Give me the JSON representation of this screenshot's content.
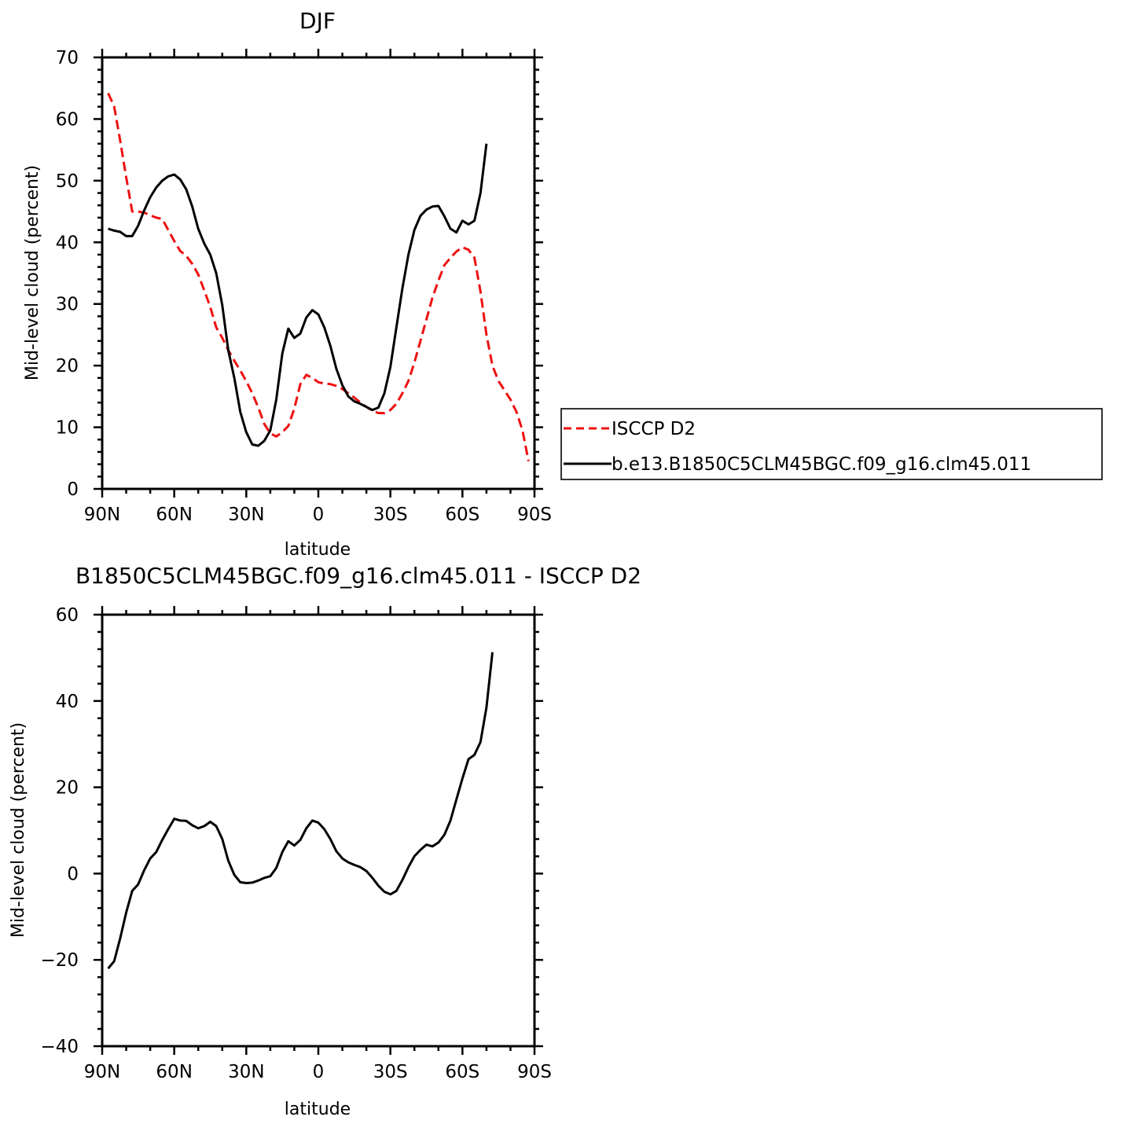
{
  "chart_data": [
    {
      "type": "line",
      "title": "DJF",
      "xlabel": "latitude",
      "ylabel": "Mid-level cloud (percent)",
      "xlim": [
        -90,
        90
      ],
      "ylim": [
        0,
        70
      ],
      "x_direction": "north-to-south",
      "xticks": [
        -90,
        -60,
        -30,
        0,
        30,
        60,
        90
      ],
      "xtick_labels": [
        "90N",
        "60N",
        "30N",
        "0",
        "30S",
        "60S",
        "90S"
      ],
      "yticks": [
        0,
        10,
        20,
        30,
        40,
        50,
        60,
        70
      ],
      "ytick_labels": [
        "0",
        "10",
        "20",
        "30",
        "40",
        "50",
        "60",
        "70"
      ],
      "legend_position": "right",
      "series": [
        {
          "name": "ISCCP D2",
          "color": "#ee1111",
          "dash": "dashed",
          "points": [
            [
              -87.5,
              64.2
            ],
            [
              -85,
              62
            ],
            [
              -82.5,
              56.5
            ],
            [
              -80,
              50.5
            ],
            [
              -77.5,
              45
            ],
            [
              -75,
              45
            ],
            [
              -72.5,
              44.8
            ],
            [
              -70,
              44.4
            ],
            [
              -67.5,
              44
            ],
            [
              -65,
              43.8
            ],
            [
              -62.5,
              42
            ],
            [
              -60,
              40.2
            ],
            [
              -57.5,
              38.6
            ],
            [
              -55,
              37.8
            ],
            [
              -52.5,
              36.5
            ],
            [
              -50,
              34.8
            ],
            [
              -47.5,
              32.2
            ],
            [
              -45,
              29.5
            ],
            [
              -42.5,
              26.2
            ],
            [
              -40,
              24.5
            ],
            [
              -37.5,
              22.5
            ],
            [
              -35,
              20.8
            ],
            [
              -32.5,
              19.2
            ],
            [
              -30,
              17.5
            ],
            [
              -27.5,
              15.5
            ],
            [
              -25,
              13.2
            ],
            [
              -22.5,
              10.5
            ],
            [
              -20,
              9
            ],
            [
              -17.5,
              8.5
            ],
            [
              -15,
              9.2
            ],
            [
              -12.5,
              10.2
            ],
            [
              -10,
              13
            ],
            [
              -7.5,
              17
            ],
            [
              -5,
              18.5
            ],
            [
              -2.5,
              18
            ],
            [
              0,
              17.3
            ],
            [
              2.5,
              17.1
            ],
            [
              5,
              17
            ],
            [
              7.5,
              16.7
            ],
            [
              10,
              16.2
            ],
            [
              12.5,
              15.5
            ],
            [
              15,
              14.8
            ],
            [
              17.5,
              14
            ],
            [
              20,
              13.3
            ],
            [
              22.5,
              12.7
            ],
            [
              25,
              12.3
            ],
            [
              27.5,
              12.3
            ],
            [
              30,
              12.8
            ],
            [
              32.5,
              13.8
            ],
            [
              35,
              15.5
            ],
            [
              37.5,
              17.5
            ],
            [
              40,
              20.5
            ],
            [
              42.5,
              24
            ],
            [
              45,
              27.5
            ],
            [
              47.5,
              31
            ],
            [
              50,
              33.8
            ],
            [
              52.5,
              36.3
            ],
            [
              55,
              37.5
            ],
            [
              57.5,
              38.5
            ],
            [
              60,
              39.2
            ],
            [
              62.5,
              38.8
            ],
            [
              65,
              37.5
            ],
            [
              67.5,
              32
            ],
            [
              70,
              25
            ],
            [
              72.5,
              20
            ],
            [
              75,
              17.5
            ],
            [
              77.5,
              16
            ],
            [
              80,
              14.5
            ],
            [
              82.5,
              12.5
            ],
            [
              85,
              9.5
            ],
            [
              87.5,
              4.5
            ]
          ]
        },
        {
          "name": "b.e13.B1850C5CLM45BGC.f09_g16.clm45.011",
          "color": "#000000",
          "dash": "solid",
          "points": [
            [
              -87.5,
              42.2
            ],
            [
              -85,
              41.9
            ],
            [
              -82.5,
              41.7
            ],
            [
              -80,
              41
            ],
            [
              -77.5,
              41
            ],
            [
              -75,
              42.7
            ],
            [
              -72.5,
              45.2
            ],
            [
              -70,
              47.3
            ],
            [
              -67.5,
              48.9
            ],
            [
              -65,
              50
            ],
            [
              -62.5,
              50.7
            ],
            [
              -60,
              51
            ],
            [
              -57.5,
              50.2
            ],
            [
              -55,
              48.6
            ],
            [
              -52.5,
              45.8
            ],
            [
              -50,
              42.2
            ],
            [
              -47.5,
              39.8
            ],
            [
              -45,
              38
            ],
            [
              -42.5,
              35
            ],
            [
              -40,
              29.8
            ],
            [
              -37.5,
              22.5
            ],
            [
              -35,
              18
            ],
            [
              -32.5,
              12.5
            ],
            [
              -30,
              9.2
            ],
            [
              -27.5,
              7.2
            ],
            [
              -25,
              7
            ],
            [
              -22.5,
              7.8
            ],
            [
              -20,
              9.5
            ],
            [
              -17.5,
              14.5
            ],
            [
              -15,
              22
            ],
            [
              -12.5,
              26
            ],
            [
              -10,
              24.5
            ],
            [
              -7.5,
              25.2
            ],
            [
              -5,
              27.8
            ],
            [
              -2.5,
              29
            ],
            [
              0,
              28.3
            ],
            [
              2.5,
              26.2
            ],
            [
              5,
              23.2
            ],
            [
              7.5,
              19.5
            ],
            [
              10,
              16.8
            ],
            [
              12.5,
              15
            ],
            [
              15,
              14.2
            ],
            [
              17.5,
              13.8
            ],
            [
              20,
              13.3
            ],
            [
              22.5,
              12.8
            ],
            [
              25,
              13.2
            ],
            [
              27.5,
              15.5
            ],
            [
              30,
              19.8
            ],
            [
              32.5,
              26.2
            ],
            [
              35,
              32.5
            ],
            [
              37.5,
              38
            ],
            [
              40,
              42
            ],
            [
              42.5,
              44.3
            ],
            [
              45,
              45.3
            ],
            [
              47.5,
              45.8
            ],
            [
              50,
              45.9
            ],
            [
              52.5,
              44.2
            ],
            [
              55,
              42.2
            ],
            [
              57.5,
              41.6
            ],
            [
              60,
              43.5
            ],
            [
              62.5,
              42.9
            ],
            [
              65,
              43.5
            ],
            [
              67.5,
              48
            ],
            [
              70,
              56
            ]
          ]
        }
      ]
    },
    {
      "type": "line",
      "title": "B1850C5CLM45BGC.f09_g16.clm45.011 - ISCCP D2",
      "xlabel": "latitude",
      "ylabel": "Mid-level cloud (percent)",
      "xlim": [
        -90,
        90
      ],
      "ylim": [
        -40,
        60
      ],
      "x_direction": "north-to-south",
      "xticks": [
        -90,
        -60,
        -30,
        0,
        30,
        60,
        90
      ],
      "xtick_labels": [
        "90N",
        "60N",
        "30N",
        "0",
        "30S",
        "60S",
        "90S"
      ],
      "yticks": [
        -40,
        -20,
        0,
        20,
        40,
        60
      ],
      "ytick_labels": [
        "−40",
        "−20",
        "0",
        "20",
        "40",
        "60"
      ],
      "series": [
        {
          "color": "#000000",
          "dash": "solid",
          "points": [
            [
              -87.5,
              -22
            ],
            [
              -85,
              -20.3
            ],
            [
              -82.5,
              -15
            ],
            [
              -80,
              -9
            ],
            [
              -77.5,
              -4
            ],
            [
              -75,
              -2.5
            ],
            [
              -72.5,
              0.8
            ],
            [
              -70,
              3.5
            ],
            [
              -67.5,
              5
            ],
            [
              -65,
              7.8
            ],
            [
              -62.5,
              10.3
            ],
            [
              -60,
              12.7
            ],
            [
              -57.5,
              12.3
            ],
            [
              -55,
              12.2
            ],
            [
              -52.5,
              11.2
            ],
            [
              -50,
              10.5
            ],
            [
              -47.5,
              11
            ],
            [
              -45,
              12
            ],
            [
              -42.5,
              11
            ],
            [
              -40,
              8
            ],
            [
              -37.5,
              3
            ],
            [
              -35,
              -0.3
            ],
            [
              -32.5,
              -2
            ],
            [
              -30,
              -2.2
            ],
            [
              -27.5,
              -2.1
            ],
            [
              -25,
              -1.6
            ],
            [
              -22.5,
              -1
            ],
            [
              -20,
              -0.6
            ],
            [
              -17.5,
              1.3
            ],
            [
              -15,
              5
            ],
            [
              -12.5,
              7.5
            ],
            [
              -10,
              6.5
            ],
            [
              -7.5,
              7.8
            ],
            [
              -5,
              10.5
            ],
            [
              -2.5,
              12.3
            ],
            [
              0,
              11.8
            ],
            [
              2.5,
              10.3
            ],
            [
              5,
              8
            ],
            [
              7.5,
              5.2
            ],
            [
              10,
              3.5
            ],
            [
              12.5,
              2.6
            ],
            [
              15,
              2
            ],
            [
              17.5,
              1.5
            ],
            [
              20,
              0.6
            ],
            [
              22.5,
              -1
            ],
            [
              25,
              -2.8
            ],
            [
              27.5,
              -4.2
            ],
            [
              30,
              -4.8
            ],
            [
              32.5,
              -4
            ],
            [
              35,
              -1.5
            ],
            [
              37.5,
              1.5
            ],
            [
              40,
              4
            ],
            [
              42.5,
              5.5
            ],
            [
              45,
              6.7
            ],
            [
              47.5,
              6.3
            ],
            [
              50,
              7.2
            ],
            [
              52.5,
              9
            ],
            [
              55,
              12.3
            ],
            [
              57.5,
              17.2
            ],
            [
              60,
              22
            ],
            [
              62.5,
              26.5
            ],
            [
              65,
              27.5
            ],
            [
              67.5,
              30.5
            ],
            [
              70,
              38.5
            ],
            [
              72.5,
              51.3
            ]
          ]
        }
      ]
    }
  ]
}
